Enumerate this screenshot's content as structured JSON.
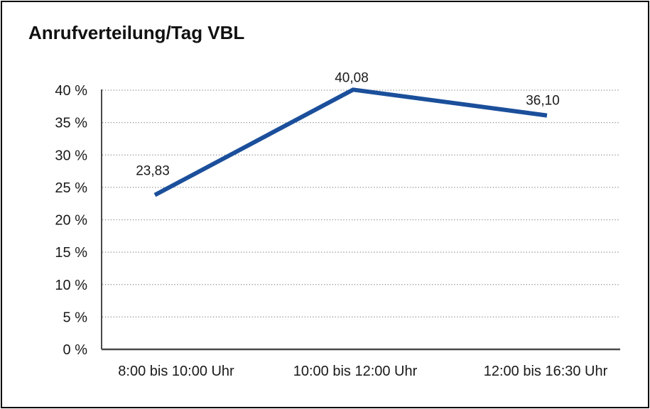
{
  "page": {
    "title": "Anrufverteilung/Tag VBL"
  },
  "chart_data": {
    "type": "line",
    "title": "Anrufverteilung/Tag VBL",
    "categories": [
      "8:00 bis 10:00 Uhr",
      "10:00 bis 12:00 Uhr",
      "12:00 bis 16:30 Uhr"
    ],
    "series": [
      {
        "name": "Anrufverteilung/Tag VBL",
        "values": [
          23.83,
          40.08,
          36.1
        ]
      }
    ],
    "point_labels": [
      "23,83",
      "40,08",
      "36,10"
    ],
    "xlabel": "",
    "ylabel": "",
    "ylim": [
      0,
      40
    ],
    "y_tick_step": 5,
    "y_tick_labels": [
      "0 %",
      "5 %",
      "10 %",
      "15 %",
      "20 %",
      "25 %",
      "30 %",
      "35 %",
      "40 %"
    ],
    "grid": "horizontal-dotted",
    "legend_position": "none",
    "colors": {
      "line": "#1B4F9B",
      "grid": "#8F8F8F",
      "axis": "#4A4A4A",
      "text": "#1A1A1A",
      "background": "#FFFFFF",
      "border": "#000000"
    }
  }
}
